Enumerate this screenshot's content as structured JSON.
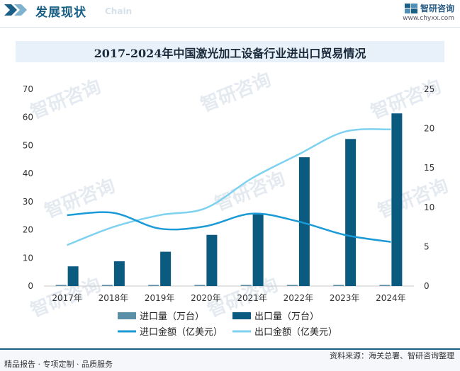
{
  "header": {
    "section_title": "发展现状",
    "section_ghost": "Chain",
    "brand_name": "智研咨询",
    "brand_url": "www.chyxx.com"
  },
  "watermark_text": "智研咨询",
  "footer": {
    "left": "精品报告 · 专项定制 · 品质服务",
    "right": "资料来源：海关总署、智研咨询整理"
  },
  "colors": {
    "import_volume": "#5b8fa8",
    "export_volume": "#0b5a80",
    "import_value": "#1a9ad6",
    "export_value": "#7fd1f0",
    "accent": "#1a5f86"
  },
  "chart_data": {
    "type": "bar+line",
    "title": "2017-2024年中国激光加工设备行业进出口贸易情况",
    "categories": [
      "2017年",
      "2018年",
      "2019年",
      "2020年",
      "2021年",
      "2022年",
      "2023年",
      "2024年"
    ],
    "left_axis": {
      "min": 0,
      "max": 70,
      "ticks": [
        0,
        10,
        20,
        30,
        40,
        50,
        60,
        70
      ]
    },
    "right_axis": {
      "min": 0,
      "max": 25,
      "ticks": [
        0,
        5,
        10,
        15,
        20,
        25
      ]
    },
    "series": [
      {
        "name": "进口量（万台）",
        "type": "bar",
        "axis": "left",
        "values": [
          0.4,
          0.4,
          0.4,
          0.4,
          0.4,
          0.4,
          0.4,
          0.4
        ]
      },
      {
        "name": "出口量（万台）",
        "type": "bar",
        "axis": "left",
        "values": [
          7,
          8.8,
          12.2,
          18.2,
          25.5,
          45.8,
          52.3,
          61.4
        ]
      },
      {
        "name": "进口金额（亿美元）",
        "type": "line",
        "axis": "right",
        "values": [
          9,
          9.3,
          7.3,
          7.6,
          9.2,
          8.2,
          6.5,
          5.6
        ]
      },
      {
        "name": "出口金额（亿美元）",
        "type": "line",
        "axis": "right",
        "values": [
          5.2,
          7.5,
          9,
          9.9,
          13.7,
          16.7,
          19.6,
          19.9
        ]
      }
    ],
    "legend_position": "bottom",
    "grid": false
  }
}
